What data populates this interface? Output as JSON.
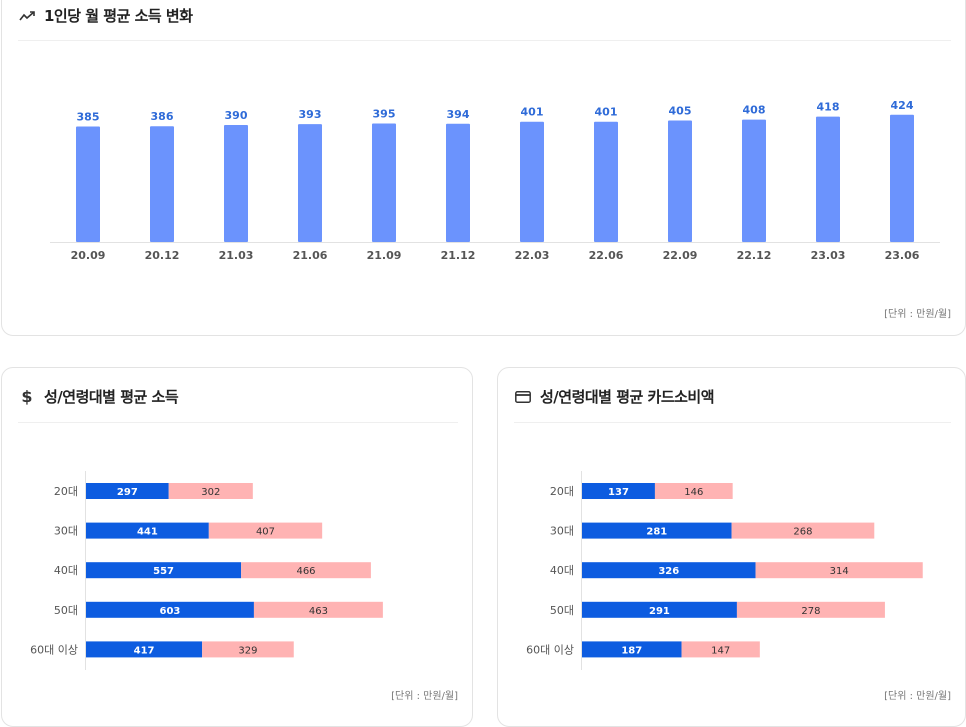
{
  "colors": {
    "bar_blue": "#6b93fd",
    "value_blue": "#2f6bd8",
    "male_blue": "#0d5ce0",
    "female_pink": "#ffb3b3"
  },
  "top_card": {
    "title": "1인당 월 평균 소득 변화",
    "icon": "trend-line-icon",
    "unit": "[단위 : 만원/월]"
  },
  "left_card": {
    "title": "성/연령대별 평균 소득",
    "icon": "dollar-icon",
    "unit": "[단위 : 만원/월]"
  },
  "right_card": {
    "title": "성/연령대별 평균 카드소비액",
    "icon": "credit-card-icon",
    "unit": "[단위 : 만원/월]"
  },
  "chart_data": [
    {
      "type": "bar",
      "title": "1인당 월 평균 소득 변화",
      "categories": [
        "20.09",
        "20.12",
        "21.03",
        "21.06",
        "21.09",
        "21.12",
        "22.03",
        "22.06",
        "22.09",
        "22.12",
        "23.03",
        "23.06"
      ],
      "values": [
        385,
        386,
        390,
        393,
        395,
        394,
        401,
        401,
        405,
        408,
        418,
        424
      ],
      "grid": false
    },
    {
      "type": "bar",
      "orientation": "horizontal",
      "stacked": true,
      "title": "성/연령대별 평균 소득",
      "categories": [
        "20대",
        "30대",
        "40대",
        "50대",
        "60대 이상"
      ],
      "series": [
        {
          "values": [
            297,
            441,
            557,
            603,
            417
          ]
        },
        {
          "values": [
            302,
            407,
            466,
            463,
            329
          ]
        }
      ]
    },
    {
      "type": "bar",
      "orientation": "horizontal",
      "stacked": true,
      "title": "성/연령대별 평균 카드소비액",
      "categories": [
        "20대",
        "30대",
        "40대",
        "50대",
        "60대 이상"
      ],
      "series": [
        {
          "values": [
            137,
            281,
            326,
            291,
            187
          ]
        },
        {
          "values": [
            146,
            268,
            314,
            278,
            147
          ]
        }
      ]
    }
  ]
}
